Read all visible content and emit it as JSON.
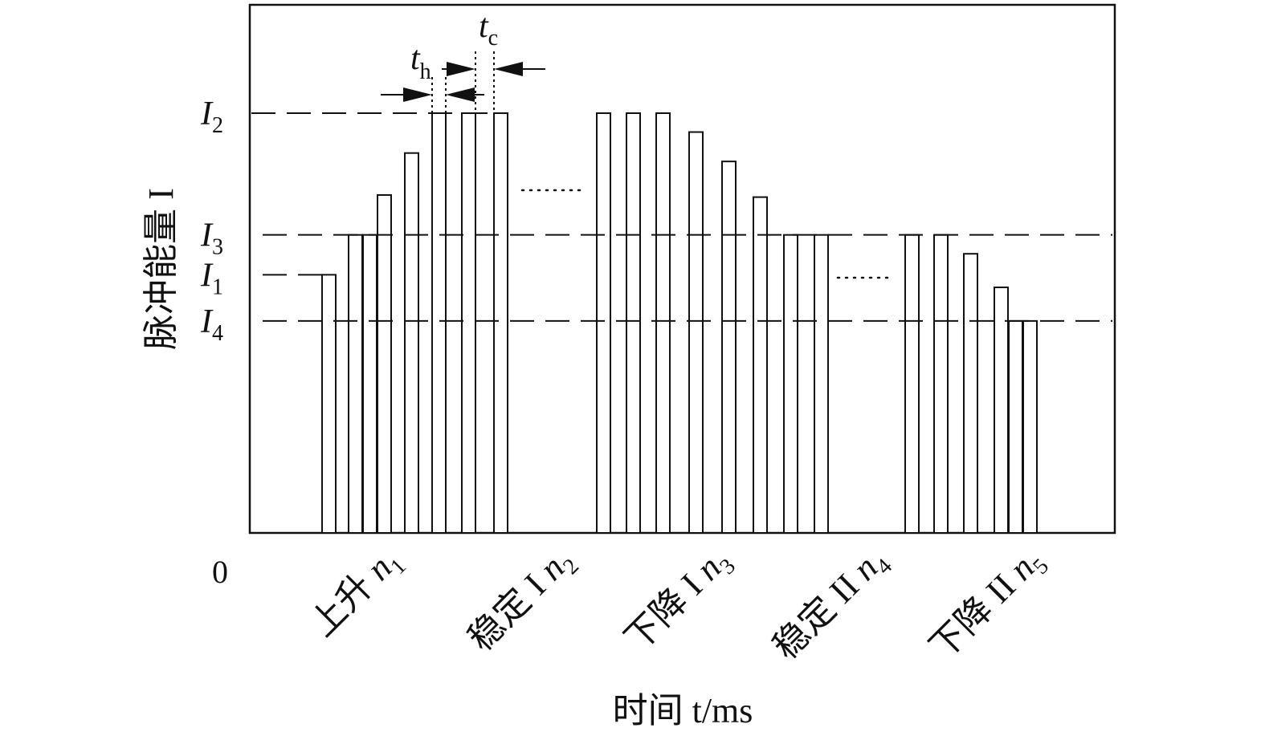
{
  "chart_data": {
    "type": "bar",
    "xlabel": "时间 t/ms",
    "ylabel": "脉冲能量 I",
    "origin_label": "0",
    "levels": {
      "I1": {
        "sym": "I",
        "sub": "1",
        "value": 0.615
      },
      "I2": {
        "sym": "I",
        "sub": "2",
        "value": 1.0
      },
      "I3": {
        "sym": "I",
        "sub": "3",
        "value": 0.71
      },
      "I4": {
        "sym": "I",
        "sub": "4",
        "value": 0.505
      }
    },
    "duration_labels": {
      "th": {
        "sym": "t",
        "sub": "h"
      },
      "tc": {
        "sym": "t",
        "sub": "c"
      }
    },
    "phases": [
      {
        "name": "上升",
        "n": "n",
        "sub": "1"
      },
      {
        "name": "稳定 I",
        "n": "n",
        "sub": "2"
      },
      {
        "name": "下降 I",
        "n": "n",
        "sub": "3"
      },
      {
        "name": "稳定 II",
        "n": "n",
        "sub": "4"
      },
      {
        "name": "下降 II",
        "n": "n",
        "sub": "5"
      }
    ],
    "pulse_groups": [
      {
        "phase": "上升",
        "values": [
          0.615,
          0.71,
          0.71,
          0.805,
          0.905,
          1.0,
          1.0,
          1.0
        ]
      },
      {
        "phase": "下降 I",
        "values": [
          1.0,
          1.0,
          1.0,
          0.955,
          0.885,
          0.8,
          0.71,
          0.71
        ]
      },
      {
        "phase": "下降 II",
        "values": [
          0.71,
          0.71,
          0.665,
          0.585,
          0.505,
          0.505
        ]
      }
    ],
    "ellipsis_after_groups": [
      0,
      1
    ],
    "ylim": [
      0,
      1.25
    ],
    "grid": false,
    "legend": "none"
  }
}
